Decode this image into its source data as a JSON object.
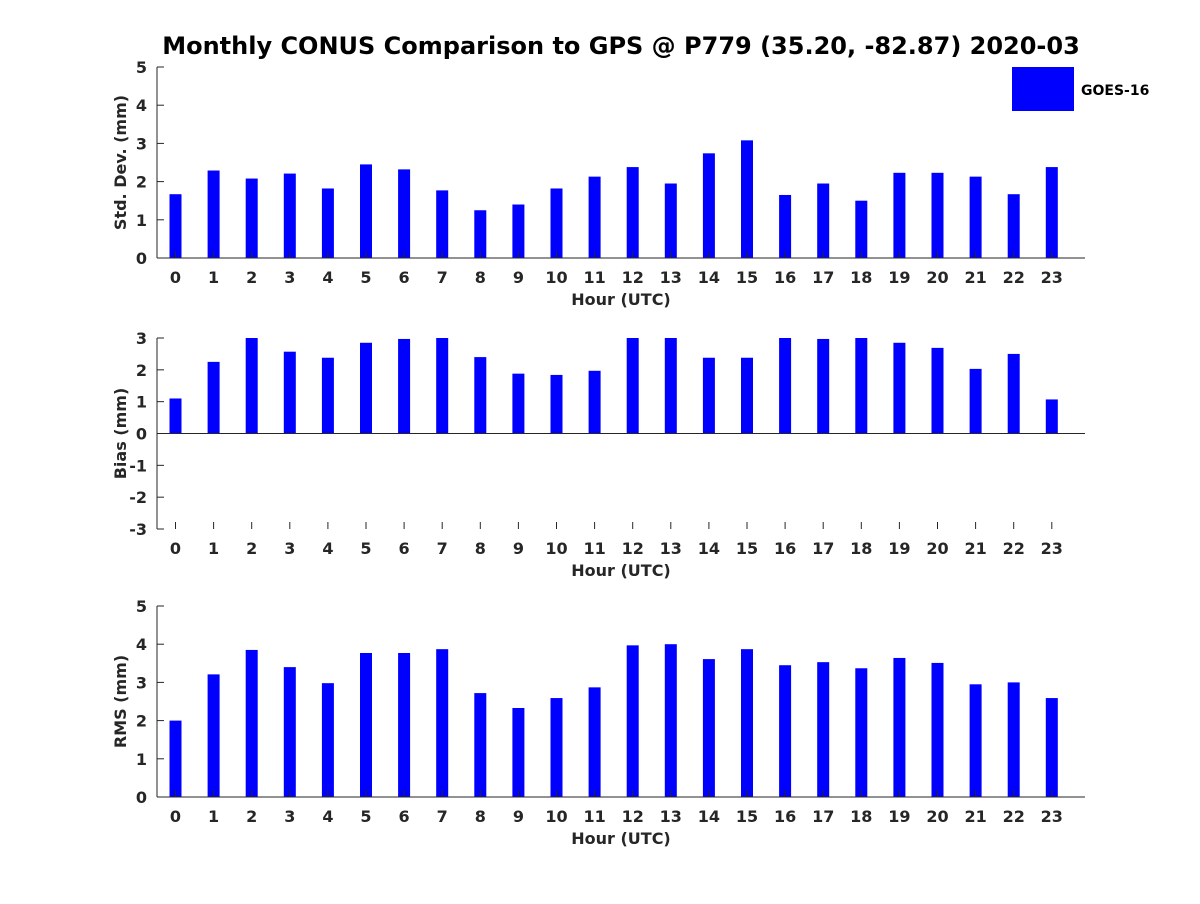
{
  "chart_data": {
    "type": "bar",
    "title": "Monthly CONUS Comparison to GPS @ P779 (35.20, -82.87) 2020-03",
    "categories": [
      "0",
      "1",
      "2",
      "3",
      "4",
      "5",
      "6",
      "7",
      "8",
      "9",
      "10",
      "11",
      "12",
      "13",
      "14",
      "15",
      "16",
      "17",
      "18",
      "19",
      "20",
      "21",
      "22",
      "23"
    ],
    "legend": {
      "label": "GOES-16",
      "placement": "top-right",
      "color": "#0000ff"
    },
    "bar_color": "#0000ff",
    "panels": [
      {
        "id": "std",
        "ylabel": "Std. Dev. (mm)",
        "xlabel": "Hour (UTC)",
        "ylim": [
          0,
          5
        ],
        "yticks": [
          0,
          1,
          2,
          3,
          4,
          5
        ],
        "series": [
          {
            "name": "GOES-16",
            "values": [
              1.67,
              2.29,
              2.08,
              2.21,
              1.82,
              2.45,
              2.32,
              1.77,
              1.25,
              1.4,
              1.82,
              2.13,
              2.38,
              1.95,
              2.74,
              3.08,
              1.65,
              1.95,
              1.5,
              2.23,
              2.23,
              2.13,
              1.67,
              2.38
            ]
          }
        ]
      },
      {
        "id": "bias",
        "ylabel": "Bias (mm)",
        "xlabel": "Hour (UTC)",
        "ylim": [
          -3,
          3
        ],
        "yticks": [
          -3,
          -2,
          -1,
          0,
          1,
          2,
          3
        ],
        "series": [
          {
            "name": "GOES-16",
            "values": [
              1.1,
              2.25,
              3.0,
              2.57,
              2.38,
              2.85,
              2.97,
              3.0,
              2.4,
              1.88,
              1.84,
              1.97,
              3.0,
              3.0,
              2.38,
              2.38,
              3.0,
              2.97,
              3.0,
              2.85,
              2.69,
              2.03,
              2.5,
              1.07
            ]
          }
        ]
      },
      {
        "id": "rms",
        "ylabel": "RMS (mm)",
        "xlabel": "Hour (UTC)",
        "ylim": [
          0,
          5
        ],
        "yticks": [
          0,
          1,
          2,
          3,
          4,
          5
        ],
        "series": [
          {
            "name": "GOES-16",
            "values": [
              2.0,
              3.21,
              3.85,
              3.4,
              2.98,
              3.77,
              3.77,
              3.87,
              2.72,
              2.33,
              2.59,
              2.87,
              3.97,
              4.0,
              3.61,
              3.87,
              3.45,
              3.53,
              3.37,
              3.64,
              3.51,
              2.95,
              3.0,
              2.59
            ]
          }
        ]
      }
    ]
  }
}
